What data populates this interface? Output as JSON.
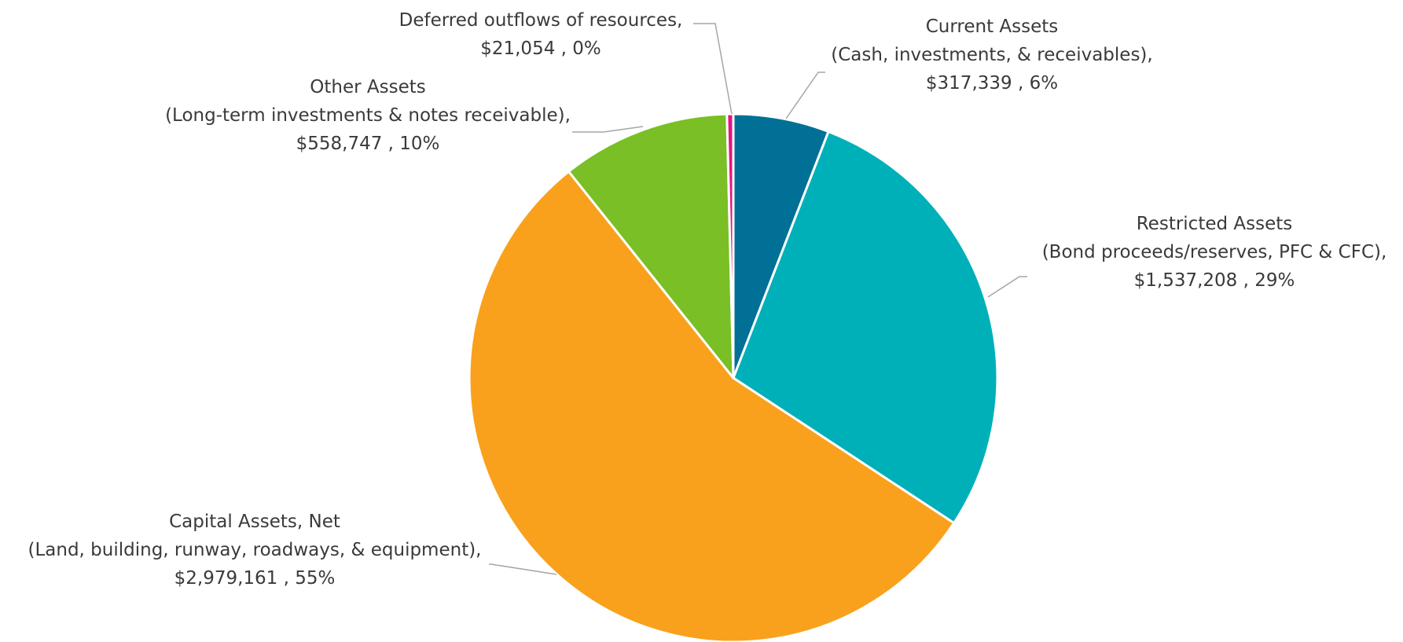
{
  "chart_data": {
    "type": "pie",
    "start_angle_deg": 0,
    "direction": "clockwise",
    "slices": [
      {
        "category": "Current Assets",
        "detail": "(Cash, investments, & receivables),",
        "value": 317339,
        "value_label": "$317,339 , 6%",
        "color": "#007096"
      },
      {
        "category": "Restricted Assets",
        "detail": "(Bond proceeds/reserves, PFC & CFC),",
        "value": 1537208,
        "value_label": "$1,537,208 , 29%",
        "color": "#00b0b9"
      },
      {
        "category": "Capital Assets, Net",
        "detail": "(Land, building, runway, roadways, & equipment),",
        "value": 2979161,
        "value_label": "$2,979,161 , 55%",
        "color": "#f9a11d"
      },
      {
        "category": "Other Assets",
        "detail": "(Long-term investments & notes receivable),",
        "value": 558747,
        "value_label": "$558,747 , 10%",
        "color": "#79bf25"
      },
      {
        "category": "Deferred outflows of resources,",
        "detail": "",
        "value": 21054,
        "value_label": "$21,054 , 0%",
        "color": "#e3157f"
      }
    ]
  }
}
